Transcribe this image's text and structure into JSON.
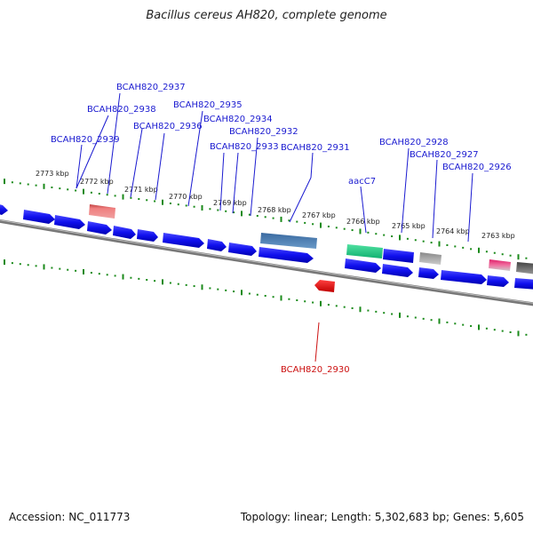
{
  "title": "Bacillus cereus AH820, complete genome",
  "footer": {
    "accession": "Accession: NC_011773",
    "summary": "Topology: linear; Length: 5,302,683 bp; Genes: 5,605"
  },
  "colors": {
    "gene_forward": "#1a1aee",
    "gene_reverse_highlight": "#e01010",
    "label_blue": "#1a1ad0",
    "label_red": "#cc1010",
    "tick_green": "#1a8a1a",
    "backbone": "#888888",
    "rna_teal": "#20c080",
    "rna_salmon": "#f07b7b",
    "rna_steel": "#4a80b0",
    "rna_grey": "#aaaaaa",
    "rna_pink": "#e0206a"
  },
  "scale_labels": [
    "2773 kbp",
    "2772 kbp",
    "2771 kbp",
    "2770 kbp",
    "2769 kbp",
    "2768 kbp",
    "2767 kbp",
    "2766 kbp",
    "2765 kbp",
    "2764 kbp",
    "2763 kbp"
  ],
  "gene_labels": [
    {
      "name": "BCAH820_2937",
      "color": "blue"
    },
    {
      "name": "BCAH820_2938",
      "color": "blue"
    },
    {
      "name": "BCAH820_2935",
      "color": "blue"
    },
    {
      "name": "BCAH820_2934",
      "color": "blue"
    },
    {
      "name": "BCAH820_2936",
      "color": "blue"
    },
    {
      "name": "BCAH820_2932",
      "color": "blue"
    },
    {
      "name": "BCAH820_2939",
      "color": "blue"
    },
    {
      "name": "BCAH820_2933",
      "color": "blue"
    },
    {
      "name": "BCAH820_2931",
      "color": "blue"
    },
    {
      "name": "BCAH820_2928",
      "color": "blue"
    },
    {
      "name": "BCAH820_2927",
      "color": "blue"
    },
    {
      "name": "BCAH820_2926",
      "color": "blue"
    },
    {
      "name": "aacC7",
      "color": "blue"
    },
    {
      "name": "BCAH820_2930",
      "color": "red"
    }
  ]
}
